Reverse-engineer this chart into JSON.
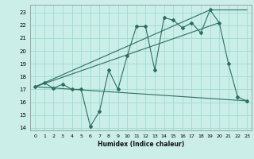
{
  "background_color": "#cceee8",
  "grid_color": "#99ddd5",
  "line_color": "#2d6e62",
  "xlim": [
    -0.5,
    23.5
  ],
  "ylim": [
    13.8,
    23.6
  ],
  "yticks": [
    14,
    15,
    16,
    17,
    18,
    19,
    20,
    21,
    22,
    23
  ],
  "xticks": [
    0,
    1,
    2,
    3,
    4,
    5,
    6,
    7,
    8,
    9,
    10,
    11,
    12,
    13,
    14,
    15,
    16,
    17,
    18,
    19,
    20,
    21,
    22,
    23
  ],
  "xlabel": "Humidex (Indice chaleur)",
  "line1_x": [
    0,
    1,
    2,
    3,
    4,
    5,
    6,
    7,
    8,
    9,
    10,
    11,
    12,
    13,
    14,
    15,
    16,
    17,
    18,
    19,
    20,
    21,
    22,
    23
  ],
  "line1_y": [
    17.2,
    17.5,
    17.1,
    17.4,
    17.0,
    17.0,
    14.1,
    15.3,
    18.5,
    17.0,
    19.6,
    21.9,
    21.9,
    18.5,
    22.6,
    22.4,
    21.8,
    22.2,
    21.4,
    23.2,
    22.2,
    19.0,
    16.4,
    16.1
  ],
  "line2_x": [
    0,
    23
  ],
  "line2_y": [
    17.2,
    16.1
  ],
  "line3_x": [
    0,
    19,
    23
  ],
  "line3_y": [
    17.2,
    23.2,
    23.2
  ],
  "line4_x": [
    0,
    20
  ],
  "line4_y": [
    17.2,
    22.2
  ]
}
